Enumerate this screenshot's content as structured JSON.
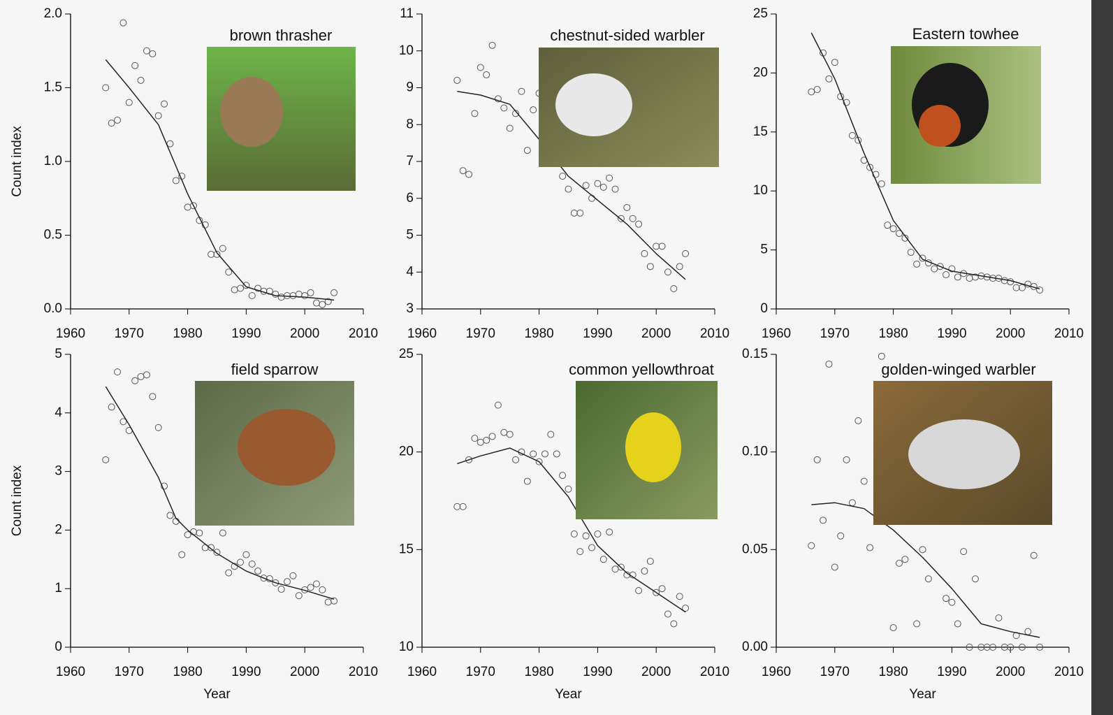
{
  "chart_data": [
    {
      "type": "scatter",
      "title": "brown thrasher",
      "y_label": "Count index",
      "color": "#555555",
      "line_color": "#222222",
      "xlim": [
        1960,
        2010
      ],
      "xticks": [
        1960,
        1970,
        1980,
        1990,
        2000,
        2010
      ],
      "ylim": [
        0,
        2
      ],
      "yticks": [
        {
          "value": 0,
          "label": "0.0"
        },
        0.5,
        {
          "value": 1,
          "label": "1.0"
        },
        1.5,
        {
          "value": 2,
          "label": "2.0"
        }
      ],
      "x": [
        1966,
        1967,
        1968,
        1969,
        1970,
        1971,
        1972,
        1973,
        1974,
        1975,
        1976,
        1977,
        1978,
        1979,
        1980,
        1981,
        1982,
        1983,
        1984,
        1985,
        1986,
        1987,
        1988,
        1989,
        1990,
        1991,
        1992,
        1993,
        1994,
        1995,
        1996,
        1997,
        1998,
        1999,
        2000,
        2001,
        2002,
        2003,
        2004,
        2005
      ],
      "values": [
        1.5,
        1.26,
        1.28,
        1.94,
        1.4,
        1.65,
        1.55,
        1.75,
        1.73,
        1.31,
        1.39,
        1.12,
        0.87,
        0.9,
        0.69,
        0.7,
        0.6,
        0.57,
        0.37,
        0.37,
        0.41,
        0.25,
        0.13,
        0.14,
        0.16,
        0.09,
        0.14,
        0.12,
        0.12,
        0.1,
        0.08,
        0.09,
        0.09,
        0.1,
        0.09,
        0.11,
        0.04,
        0.03,
        0.05,
        0.11
      ],
      "trend_x": [
        1966,
        1970,
        1975,
        1980,
        1985,
        1990,
        1995,
        2000,
        2005
      ],
      "trend_values": [
        1.69,
        1.5,
        1.25,
        0.78,
        0.38,
        0.15,
        0.09,
        0.08,
        0.06
      ]
    },
    {
      "type": "scatter",
      "title": "chestnut-sided warbler",
      "color": "#555555",
      "line_color": "#222222",
      "xlim": [
        1960,
        2010
      ],
      "xticks": [
        1960,
        1970,
        1980,
        1990,
        2000,
        2010
      ],
      "ylim": [
        3,
        11
      ],
      "yticks": [
        3,
        4,
        5,
        6,
        7,
        8,
        9,
        10,
        11
      ],
      "x": [
        1966,
        1967,
        1968,
        1969,
        1970,
        1971,
        1972,
        1973,
        1974,
        1975,
        1976,
        1977,
        1978,
        1979,
        1980,
        1984,
        1985,
        1986,
        1987,
        1988,
        1989,
        1990,
        1991,
        1992,
        1993,
        1994,
        1995,
        1996,
        1997,
        1998,
        1999,
        2000,
        2001,
        2002,
        2003,
        2004,
        2005
      ],
      "values": [
        9.2,
        6.75,
        6.65,
        8.3,
        9.55,
        9.35,
        10.15,
        8.7,
        8.45,
        7.9,
        8.3,
        8.9,
        7.3,
        8.4,
        8.85,
        6.6,
        6.25,
        5.6,
        5.6,
        6.35,
        6.0,
        6.4,
        6.3,
        6.55,
        6.25,
        5.45,
        5.75,
        5.45,
        5.3,
        4.5,
        4.15,
        4.7,
        4.7,
        4.0,
        3.55,
        4.15,
        4.5
      ],
      "trend_x": [
        1966,
        1970,
        1975,
        1980,
        1985,
        1990,
        1995,
        2000,
        2005
      ],
      "trend_values": [
        8.9,
        8.8,
        8.55,
        7.6,
        6.6,
        5.95,
        5.3,
        4.5,
        3.8
      ]
    },
    {
      "type": "scatter",
      "title": "Eastern towhee",
      "color": "#555555",
      "line_color": "#222222",
      "xlim": [
        1960,
        2010
      ],
      "xticks": [
        1960,
        1970,
        1980,
        1990,
        2000,
        2010
      ],
      "ylim": [
        0,
        25
      ],
      "yticks": [
        0,
        5,
        10,
        15,
        20,
        25
      ],
      "x": [
        1966,
        1967,
        1968,
        1969,
        1970,
        1971,
        1972,
        1973,
        1974,
        1975,
        1976,
        1977,
        1978,
        1979,
        1980,
        1981,
        1982,
        1983,
        1984,
        1985,
        1986,
        1987,
        1988,
        1989,
        1990,
        1991,
        1992,
        1993,
        1994,
        1995,
        1996,
        1997,
        1998,
        1999,
        2000,
        2001,
        2002,
        2003,
        2004,
        2005
      ],
      "values": [
        18.4,
        18.6,
        21.7,
        19.5,
        20.9,
        18.0,
        17.5,
        14.7,
        14.3,
        12.6,
        12.0,
        11.4,
        10.6,
        7.1,
        6.8,
        6.4,
        6.0,
        4.8,
        3.8,
        4.3,
        3.9,
        3.4,
        3.6,
        2.9,
        3.4,
        2.7,
        3.0,
        2.6,
        2.7,
        2.8,
        2.7,
        2.6,
        2.6,
        2.4,
        2.3,
        1.8,
        1.8,
        2.1,
        1.9,
        1.6
      ],
      "trend_x": [
        1966,
        1970,
        1975,
        1980,
        1985,
        1990,
        1995,
        2000,
        2005
      ],
      "trend_values": [
        23.4,
        19.5,
        13.2,
        7.5,
        4.2,
        3.2,
        2.8,
        2.4,
        1.7
      ]
    },
    {
      "type": "scatter",
      "title": "field sparrow",
      "y_label": "Count index",
      "x_label": "Year",
      "color": "#555555",
      "line_color": "#222222",
      "xlim": [
        1960,
        2010
      ],
      "xticks": [
        1960,
        1970,
        1980,
        1990,
        2000,
        2010
      ],
      "ylim": [
        0,
        5
      ],
      "yticks": [
        0,
        1,
        2,
        3,
        4,
        5
      ],
      "x": [
        1966,
        1967,
        1968,
        1969,
        1970,
        1971,
        1972,
        1973,
        1974,
        1975,
        1976,
        1977,
        1978,
        1979,
        1980,
        1981,
        1982,
        1983,
        1984,
        1985,
        1986,
        1987,
        1988,
        1989,
        1990,
        1991,
        1992,
        1993,
        1994,
        1995,
        1996,
        1997,
        1998,
        1999,
        2000,
        2001,
        2002,
        2003,
        2004,
        2005
      ],
      "values": [
        3.2,
        4.1,
        4.7,
        3.85,
        3.7,
        4.55,
        4.62,
        4.65,
        4.28,
        3.75,
        2.75,
        2.25,
        2.15,
        1.58,
        1.92,
        1.97,
        1.95,
        1.7,
        1.7,
        1.62,
        1.95,
        1.27,
        1.38,
        1.45,
        1.58,
        1.42,
        1.3,
        1.18,
        1.17,
        1.1,
        0.99,
        1.12,
        1.22,
        0.88,
        0.98,
        1.02,
        1.08,
        0.98,
        0.77,
        0.79
      ],
      "trend_x": [
        1966,
        1970,
        1975,
        1978,
        1980,
        1985,
        1990,
        1995,
        2000,
        2005
      ],
      "trend_values": [
        4.45,
        3.8,
        2.9,
        2.2,
        2.0,
        1.6,
        1.3,
        1.1,
        0.97,
        0.82
      ]
    },
    {
      "type": "scatter",
      "title": "common yellowthroat",
      "x_label": "Year",
      "color": "#555555",
      "line_color": "#222222",
      "xlim": [
        1960,
        2010
      ],
      "xticks": [
        1960,
        1970,
        1980,
        1990,
        2000,
        2010
      ],
      "ylim": [
        10,
        25
      ],
      "yticks": [
        10,
        15,
        20,
        25
      ],
      "x": [
        1966,
        1967,
        1968,
        1969,
        1970,
        1971,
        1972,
        1973,
        1974,
        1975,
        1976,
        1977,
        1978,
        1979,
        1980,
        1981,
        1982,
        1983,
        1984,
        1985,
        1986,
        1987,
        1988,
        1989,
        1990,
        1991,
        1992,
        1993,
        1994,
        1995,
        1996,
        1997,
        1998,
        1999,
        2000,
        2001,
        2002,
        2003,
        2004,
        2005
      ],
      "values": [
        17.2,
        17.2,
        19.6,
        20.7,
        20.5,
        20.6,
        20.8,
        22.4,
        21.0,
        20.9,
        19.6,
        20.0,
        18.5,
        19.9,
        19.5,
        19.9,
        20.9,
        19.9,
        18.8,
        18.1,
        15.8,
        14.9,
        15.7,
        15.1,
        15.8,
        14.5,
        15.9,
        14.0,
        14.1,
        13.7,
        13.7,
        12.9,
        13.9,
        14.4,
        12.8,
        13.0,
        11.7,
        11.2,
        12.6,
        12.0
      ],
      "trend_x": [
        1966,
        1970,
        1975,
        1980,
        1985,
        1990,
        1995,
        2000,
        2005
      ],
      "trend_values": [
        19.4,
        19.8,
        20.2,
        19.5,
        17.7,
        15.2,
        13.8,
        12.8,
        11.8
      ]
    },
    {
      "type": "scatter",
      "title": "golden-winged warbler",
      "x_label": "Year",
      "color": "#555555",
      "line_color": "#222222",
      "xlim": [
        1960,
        2010
      ],
      "xticks": [
        1960,
        1970,
        1980,
        1990,
        2000,
        2010
      ],
      "ylim": [
        0,
        0.15
      ],
      "yticks": [
        {
          "value": 0,
          "label": "0.00"
        },
        0.05,
        {
          "value": 0.1,
          "label": "0.10"
        },
        0.15
      ],
      "x": [
        1966,
        1967,
        1968,
        1969,
        1970,
        1971,
        1972,
        1973,
        1974,
        1975,
        1976,
        1978,
        1980,
        1981,
        1982,
        1984,
        1985,
        1986,
        1989,
        1990,
        1991,
        1992,
        1993,
        1994,
        1995,
        1996,
        1997,
        1998,
        1999,
        2000,
        2001,
        2002,
        2003,
        2004,
        2005
      ],
      "values": [
        0.052,
        0.096,
        0.065,
        0.145,
        0.041,
        0.057,
        0.096,
        0.074,
        0.116,
        0.085,
        0.051,
        0.149,
        0.01,
        0.043,
        0.045,
        0.012,
        0.05,
        0.035,
        0.025,
        0.023,
        0.012,
        0.049,
        0,
        0.035,
        0,
        0,
        0,
        0.015,
        0,
        0,
        0.006,
        0,
        0.008,
        0.047,
        0
      ],
      "trend_x": [
        1966,
        1970,
        1975,
        1980,
        1985,
        1990,
        1995,
        2000,
        2005
      ],
      "trend_values": [
        0.073,
        0.074,
        0.071,
        0.06,
        0.046,
        0.03,
        0.012,
        0.008,
        0.005
      ]
    }
  ]
}
